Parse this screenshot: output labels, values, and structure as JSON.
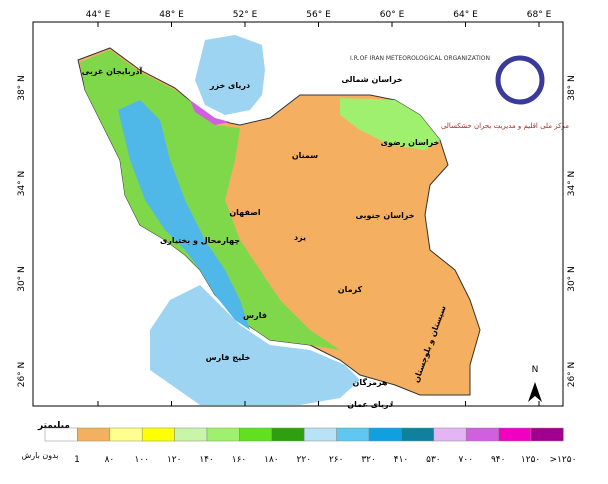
{
  "map": {
    "lon_labels": [
      "44° E",
      "48° E",
      "52° E",
      "56° E",
      "60° E",
      "64° E",
      "68° E"
    ],
    "lat_labels": [
      "38° N",
      "34° N",
      "30° N",
      "26° N"
    ],
    "places": [
      "آذربایجان غربی",
      "دریای خزر",
      "خراسان شمالی",
      "خراسان رضوی",
      "سمنان",
      "اصفهان",
      "خراسان جنوبی",
      "یزد",
      "کرمان",
      "چهارمحال و بختیاری",
      "فارس",
      "سیستان و بلوچستان",
      "خلیج فارس",
      "هرمزگان",
      "دریای عمان"
    ],
    "logo": {
      "org": "I.R.OF IRAN METEOROLOGICAL ORGANIZATION",
      "center": "مرکز ملی اقلیم و مدیریت بحران خشکسالی"
    },
    "north": "N"
  },
  "legend": {
    "unit": "میلیمتر",
    "no_rain": "بدون بارش",
    "labels": [
      "1",
      "۸۰",
      "۱۰۰",
      "۱۲۰",
      "۱۴۰",
      "۱۶۰",
      "۱۸۰",
      "۲۲۰",
      "۲۶۰",
      "۳۲۰",
      "۴۱۰",
      "۵۳۰",
      "۷۰۰",
      "۹۴۰",
      "۱۲۵۰",
      ">۱۲۵۰"
    ],
    "colors": [
      "#ffffff",
      "#f4b060",
      "#ffff90",
      "#ffff00",
      "#c8f5a8",
      "#a0f070",
      "#60e020",
      "#2ea010",
      "#b8e2f5",
      "#60c8f0",
      "#10a0e0",
      "#10809f",
      "#e4b4f4",
      "#d060e0",
      "#f000c0",
      "#a00090"
    ]
  }
}
